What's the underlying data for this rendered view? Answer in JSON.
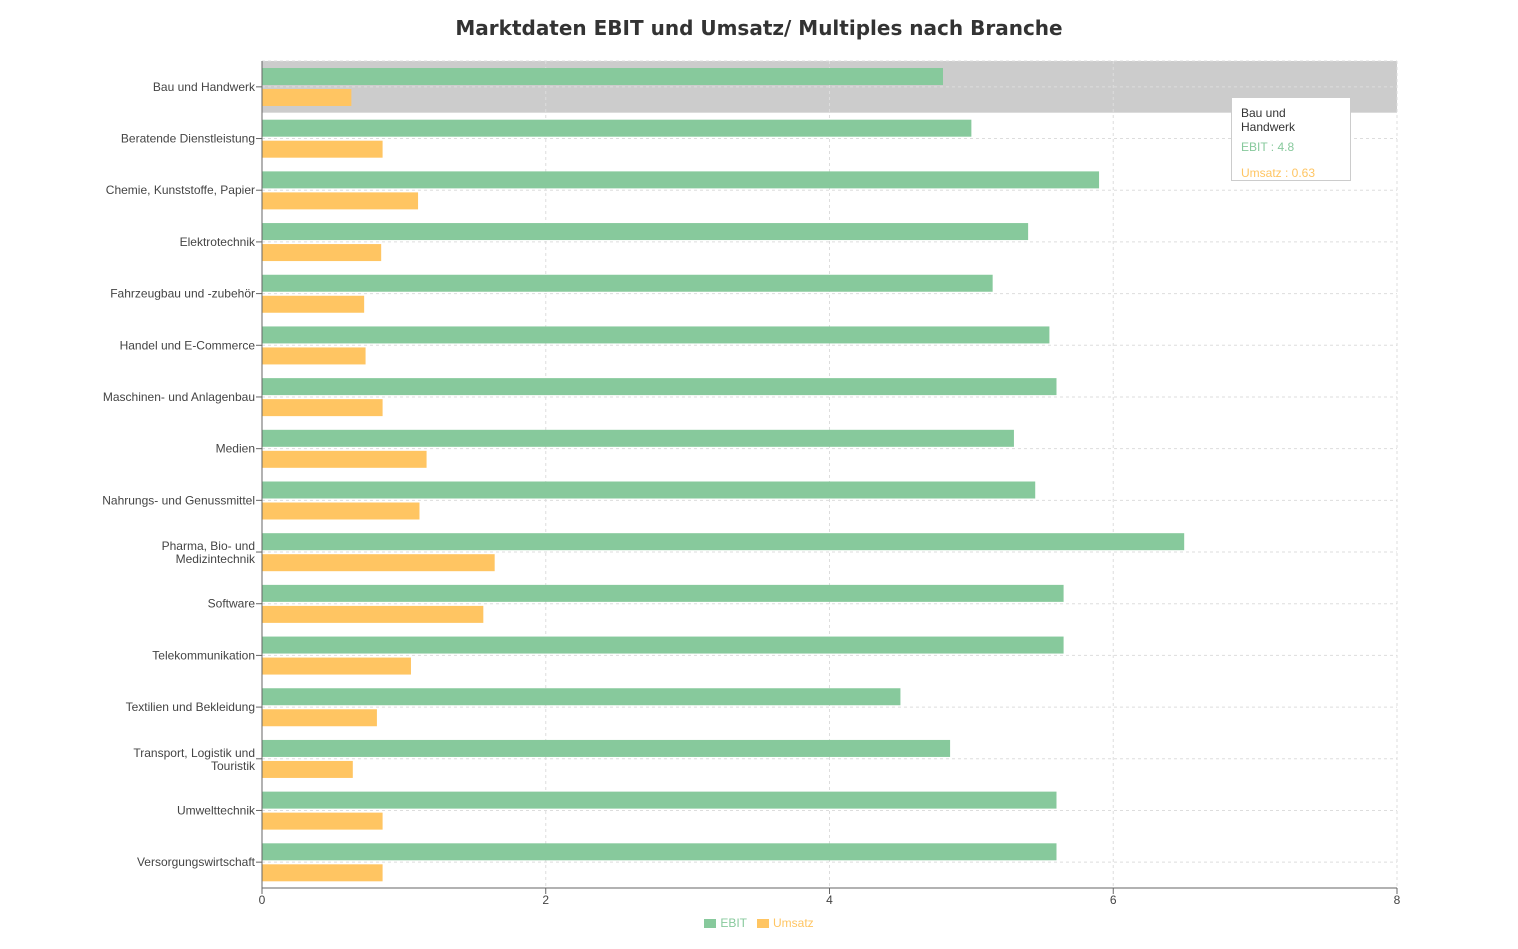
{
  "colors": {
    "ebit": "#87c99c",
    "umsatz": "#ffc562",
    "highlight": "#cccccc",
    "grid": "#dddddd",
    "axis": "#666666",
    "text": "#444444"
  },
  "chart_data": {
    "type": "bar",
    "orientation": "horizontal",
    "title": "Marktdaten EBIT und Umsatz/ Multiples nach Branche",
    "categories": [
      "Bau und Handwerk",
      "Beratende Dienstleistung",
      "Chemie, Kunststoffe, Papier",
      "Elektrotechnik",
      "Fahrzeugbau und -zubehör",
      "Handel und E-Commerce",
      "Maschinen- und Anlagenbau",
      "Medien",
      "Nahrungs- und Genussmittel",
      "Pharma, Bio- und Medizintechnik",
      "Software",
      "Telekommunikation",
      "Textilien und Bekleidung",
      "Transport, Logistik und Touristik",
      "Umwelttechnik",
      "Versorgungswirtschaft"
    ],
    "series": [
      {
        "name": "EBIT",
        "values": [
          4.8,
          5.0,
          5.9,
          5.4,
          5.15,
          5.55,
          5.6,
          5.3,
          5.45,
          6.5,
          5.65,
          5.65,
          4.5,
          4.85,
          5.6,
          5.6
        ]
      },
      {
        "name": "Umsatz",
        "values": [
          0.63,
          0.85,
          1.1,
          0.84,
          0.72,
          0.73,
          0.85,
          1.16,
          1.11,
          1.64,
          1.56,
          1.05,
          0.81,
          0.64,
          0.85,
          0.85
        ]
      }
    ],
    "xticks": [
      "0",
      "2",
      "4",
      "6",
      "8"
    ],
    "xlim": [
      0,
      8
    ],
    "grid": true,
    "legend": "bottom-center",
    "highlighted_category": "Bau und Handwerk"
  },
  "tooltip": {
    "title": "Bau und Handwerk",
    "ebit_label": "EBIT : 4.8",
    "umsatz_label": "Umsatz : 0.63"
  },
  "legend": {
    "ebit": "EBIT",
    "umsatz": "Umsatz"
  }
}
